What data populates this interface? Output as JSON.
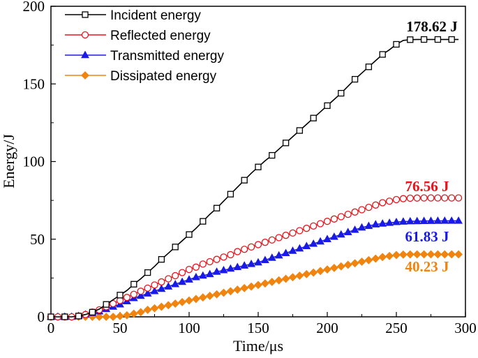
{
  "chart_data": {
    "type": "line",
    "title": "",
    "xlabel": "Time/μs",
    "ylabel": "Energy/J",
    "xlim": [
      0,
      300
    ],
    "ylim": [
      0,
      200
    ],
    "xticks": [
      0,
      50,
      100,
      150,
      200,
      250,
      300
    ],
    "yticks": [
      0,
      50,
      100,
      150,
      200
    ],
    "legend_position": "top-left",
    "series": [
      {
        "name": "Incident energy",
        "color": "#000000",
        "marker": "square",
        "x": [
          0,
          5,
          10,
          15,
          20,
          25,
          30,
          35,
          40,
          45,
          50,
          55,
          60,
          65,
          70,
          75,
          80,
          85,
          90,
          95,
          100,
          105,
          110,
          115,
          120,
          125,
          130,
          135,
          140,
          145,
          150,
          155,
          160,
          165,
          170,
          175,
          180,
          185,
          190,
          195,
          200,
          205,
          210,
          215,
          220,
          225,
          230,
          235,
          240,
          245,
          250,
          255,
          260,
          265,
          270,
          275,
          280,
          285,
          290,
          295
        ],
        "y": [
          0,
          0,
          0,
          0,
          0.5,
          1.5,
          3,
          5,
          8,
          11,
          14,
          17,
          21,
          24.5,
          28.5,
          32.5,
          37,
          41,
          45,
          49,
          53,
          57,
          61.5,
          66,
          70,
          74.5,
          79,
          83.5,
          88,
          92.5,
          96.5,
          100.5,
          104,
          108,
          112,
          116,
          120,
          124,
          128,
          132,
          136,
          140,
          144,
          148.5,
          153,
          157,
          161,
          165,
          169,
          172,
          175.5,
          178,
          178.5,
          178.62,
          178.62,
          178.62,
          178.62,
          178.62,
          178.62,
          178.62
        ],
        "marker_every": 2,
        "annotation": "178.62 J"
      },
      {
        "name": "Reflected energy",
        "color": "#e8141c",
        "marker": "circle",
        "x": [
          0,
          5,
          10,
          15,
          20,
          25,
          30,
          35,
          40,
          45,
          50,
          55,
          60,
          65,
          70,
          75,
          80,
          85,
          90,
          95,
          100,
          105,
          110,
          115,
          120,
          125,
          130,
          135,
          140,
          145,
          150,
          155,
          160,
          165,
          170,
          175,
          180,
          185,
          190,
          195,
          200,
          205,
          210,
          215,
          220,
          225,
          230,
          235,
          240,
          245,
          250,
          255,
          260,
          265,
          270,
          275,
          280,
          285,
          290,
          295
        ],
        "y": [
          0,
          0,
          0,
          0,
          0.5,
          1.5,
          3,
          4.5,
          6.5,
          8.5,
          10.5,
          12.5,
          14.5,
          16.5,
          18.5,
          20.5,
          22.5,
          24.5,
          26.5,
          28.5,
          30.5,
          32,
          34,
          35.5,
          37,
          38.5,
          40,
          42,
          43.5,
          45,
          46.5,
          48,
          49.5,
          51,
          52.5,
          54,
          55.5,
          57,
          58.5,
          60,
          61.5,
          63,
          64.5,
          66,
          67.5,
          69,
          70.5,
          72,
          73.5,
          74.5,
          75.5,
          76.1,
          76.4,
          76.5,
          76.56,
          76.56,
          76.56,
          76.56,
          76.56,
          76.56
        ],
        "marker_every": 1,
        "annotation": "76.56 J"
      },
      {
        "name": "Transmitted energy",
        "color": "#1a1ae6",
        "marker": "triangle",
        "x": [
          0,
          5,
          10,
          15,
          20,
          25,
          30,
          35,
          40,
          45,
          50,
          55,
          60,
          65,
          70,
          75,
          80,
          85,
          90,
          95,
          100,
          105,
          110,
          115,
          120,
          125,
          130,
          135,
          140,
          145,
          150,
          155,
          160,
          165,
          170,
          175,
          180,
          185,
          190,
          195,
          200,
          205,
          210,
          215,
          220,
          225,
          230,
          235,
          240,
          245,
          250,
          255,
          260,
          265,
          270,
          275,
          280,
          285,
          290,
          295
        ],
        "y": [
          0,
          0,
          0,
          0,
          0.5,
          1.5,
          2.5,
          3.5,
          5,
          6.5,
          8,
          10,
          12,
          13.5,
          15,
          16.5,
          18,
          19.5,
          21,
          22.5,
          24,
          25.5,
          26.5,
          27.5,
          29,
          30,
          31,
          32,
          33,
          34,
          35,
          36.5,
          38,
          39.5,
          41,
          42.5,
          44,
          45.5,
          47,
          48.5,
          50,
          51.5,
          53,
          54.5,
          56,
          57.5,
          58.5,
          59.5,
          60,
          60.5,
          61,
          61.3,
          61.5,
          61.6,
          61.7,
          61.75,
          61.8,
          61.83,
          61.83,
          61.83
        ],
        "marker_every": 1,
        "annotation": "61.83 J"
      },
      {
        "name": "Dissipated energy",
        "color": "#f0840f",
        "marker": "diamond",
        "x": [
          0,
          5,
          10,
          15,
          20,
          25,
          30,
          35,
          40,
          45,
          50,
          55,
          60,
          65,
          70,
          75,
          80,
          85,
          90,
          95,
          100,
          105,
          110,
          115,
          120,
          125,
          130,
          135,
          140,
          145,
          150,
          155,
          160,
          165,
          170,
          175,
          180,
          185,
          190,
          195,
          200,
          205,
          210,
          215,
          220,
          225,
          230,
          235,
          240,
          245,
          250,
          255,
          260,
          265,
          270,
          275,
          280,
          285,
          290,
          295
        ],
        "y": [
          0,
          0,
          0,
          0,
          0,
          0,
          0,
          0,
          0,
          0,
          0.5,
          1,
          2,
          3,
          4.5,
          5.5,
          6.5,
          7.5,
          8.5,
          9.5,
          10.5,
          11.5,
          12.5,
          13.5,
          14.5,
          15.5,
          16.5,
          17.5,
          18.5,
          19.5,
          20.5,
          21.5,
          22.5,
          23.5,
          24.5,
          25.5,
          26.5,
          27.5,
          28.5,
          29.5,
          30.5,
          31.5,
          32.5,
          33.5,
          34.5,
          35.5,
          36.5,
          37.5,
          38.5,
          39.2,
          39.8,
          40.1,
          40.2,
          40.23,
          40.23,
          40.23,
          40.23,
          40.23,
          40.23,
          40.23
        ],
        "marker_every": 1,
        "annotation": "40.23 J"
      }
    ]
  }
}
